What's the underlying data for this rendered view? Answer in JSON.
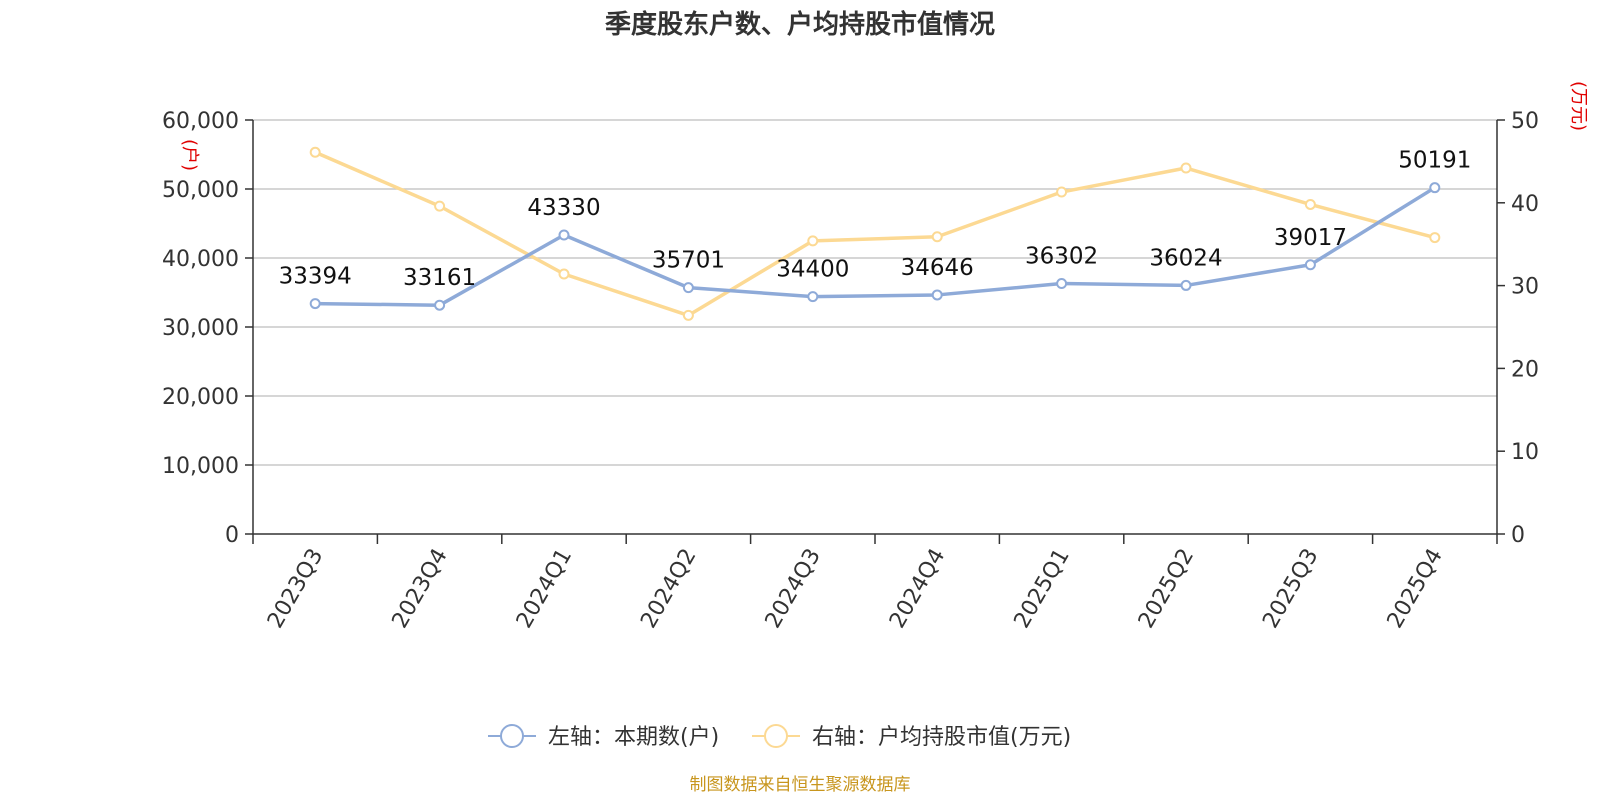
{
  "chart_data": {
    "type": "line",
    "title": "季度股东户数、户均持股市值情况",
    "categories": [
      "2023Q3",
      "2023Q4",
      "2024Q1",
      "2024Q2",
      "2024Q3",
      "2024Q4",
      "2025Q1",
      "2025Q2",
      "2025Q3",
      "2025Q4"
    ],
    "left_axis": {
      "unit": "(户)",
      "range": [
        0,
        60000
      ],
      "ticks": [
        "0",
        "10,000",
        "20,000",
        "30,000",
        "40,000",
        "50,000",
        "60,000"
      ]
    },
    "right_axis": {
      "unit": "(万元)",
      "range": [
        0,
        50
      ],
      "ticks": [
        "0",
        "10",
        "20",
        "30",
        "40",
        "50"
      ]
    },
    "series": [
      {
        "name": "左轴：本期数(户)",
        "axis": "left",
        "color": "#8eaad8",
        "values": [
          33394,
          33161,
          43330,
          35701,
          34400,
          34646,
          36302,
          36024,
          39017,
          50191
        ],
        "labels": [
          "33394",
          "33161",
          "43330",
          "35701",
          "34400",
          "34646",
          "36302",
          "36024",
          "39017",
          "50191"
        ]
      },
      {
        "name": "右轴：户均持股市值(万元)",
        "axis": "right",
        "color": "#fcd993",
        "values": [
          46.1,
          39.6,
          31.4,
          26.4,
          35.4,
          35.9,
          41.3,
          44.2,
          39.8,
          35.8
        ]
      }
    ],
    "grid": true,
    "legend_position": "bottom-center",
    "source": "制图数据来自恒生聚源数据库"
  }
}
